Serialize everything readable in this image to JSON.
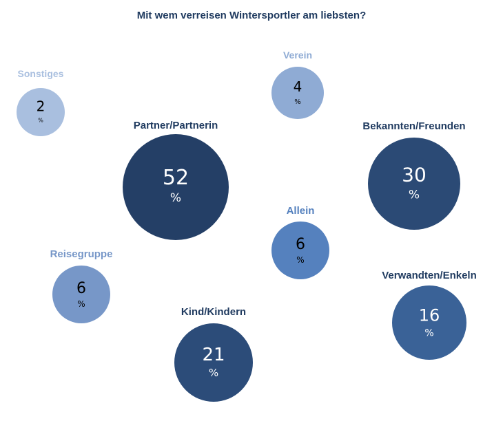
{
  "chart_data": {
    "type": "bubble",
    "title": "Mit wem verreisen Wintersportler am liebsten?",
    "unit": "%",
    "items": [
      {
        "label": "Sonstiges",
        "value": 2,
        "color": "#a9bfdf",
        "label_color": "#a9bfdf",
        "text_color": "#000000"
      },
      {
        "label": "Verein",
        "value": 4,
        "color": "#8fabd4",
        "label_color": "#8fabd4",
        "text_color": "#000000"
      },
      {
        "label": "Partner/Partnerin",
        "value": 52,
        "color": "#243f66",
        "label_color": "#1f3a5f",
        "text_color": "#ffffff"
      },
      {
        "label": "Bekannten/Freunden",
        "value": 30,
        "color": "#2b4a75",
        "label_color": "#1f3a5f",
        "text_color": "#ffffff"
      },
      {
        "label": "Allein",
        "value": 6,
        "color": "#5581be",
        "label_color": "#5581be",
        "text_color": "#000000"
      },
      {
        "label": "Reisegruppe",
        "value": 6,
        "color": "#7797c8",
        "label_color": "#7797c8",
        "text_color": "#000000"
      },
      {
        "label": "Verwandten/Enkeln",
        "value": 16,
        "color": "#3a6297",
        "label_color": "#1f3a5f",
        "text_color": "#ffffff"
      },
      {
        "label": "Kind/Kindern",
        "value": 21,
        "color": "#2c4c79",
        "label_color": "#1f3a5f",
        "text_color": "#ffffff"
      }
    ]
  }
}
